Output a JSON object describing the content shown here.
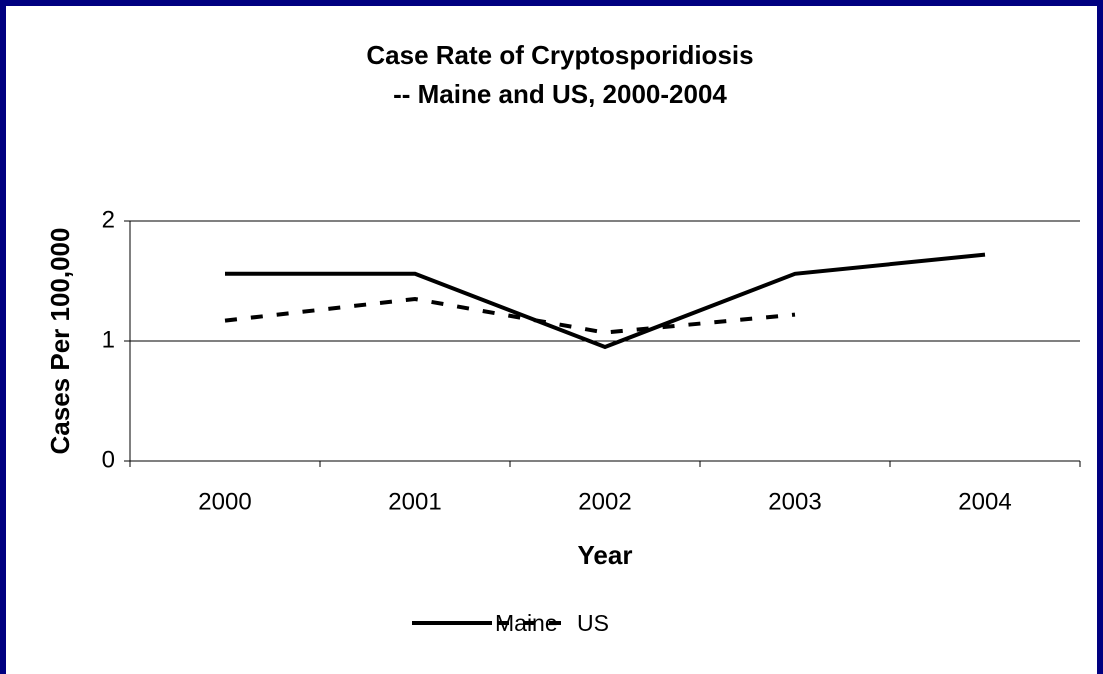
{
  "chart_data": {
    "type": "line",
    "title": [
      "Case Rate of Cryptosporidiosis",
      "-- Maine and US, 2000-2004"
    ],
    "x_label": "Year",
    "y_label": "Cases Per 100,000",
    "categories": [
      "2000",
      "2001",
      "2002",
      "2003",
      "2004"
    ],
    "series": [
      {
        "name": "Maine",
        "color": "#000000",
        "dash": false,
        "values": [
          1.56,
          1.56,
          0.95,
          1.56,
          1.72
        ]
      },
      {
        "name": "US",
        "color": "#000000",
        "dash": true,
        "values": [
          1.17,
          1.35,
          1.07,
          1.22,
          null
        ]
      }
    ],
    "ylim": [
      0,
      2
    ],
    "yticks": [
      0,
      1,
      2
    ],
    "grid": true,
    "legend": "bottom"
  }
}
